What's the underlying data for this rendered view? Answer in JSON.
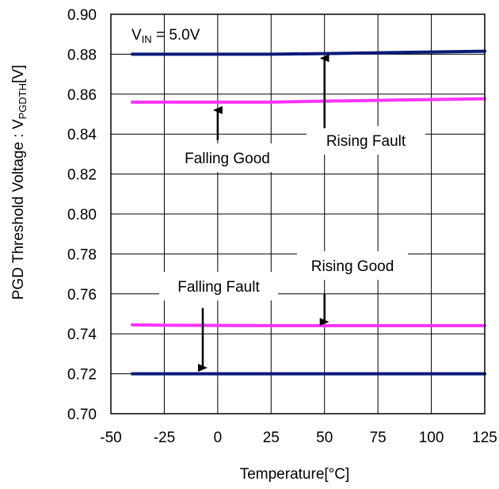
{
  "chart_data": {
    "type": "line",
    "title": "",
    "xlabel": "Temperature[°C]",
    "ylabel": {
      "main": "PGD Threshold Voltage : V",
      "sub": "PGDTH",
      "unit": "[V]"
    },
    "xlim": [
      -50,
      125
    ],
    "ylim": [
      0.7,
      0.9
    ],
    "xticks": [
      "-50",
      "-25",
      "0",
      "25",
      "50",
      "75",
      "100",
      "125"
    ],
    "yticks": [
      "0.70",
      "0.72",
      "0.74",
      "0.76",
      "0.78",
      "0.80",
      "0.82",
      "0.84",
      "0.86",
      "0.88",
      "0.90"
    ],
    "grid": true,
    "condition": {
      "prefix": "V",
      "sub": "IN",
      "rest": " = 5.0V"
    },
    "series": [
      {
        "name": "Rising Fault",
        "color": "#0a1a7a",
        "x": [
          -40,
          -25,
          0,
          25,
          50,
          75,
          100,
          125
        ],
        "y": [
          0.88,
          0.88,
          0.88,
          0.88,
          0.8803,
          0.8807,
          0.8811,
          0.8815
        ]
      },
      {
        "name": "Falling Good",
        "color": "#ff33ff",
        "x": [
          -40,
          -25,
          0,
          25,
          50,
          75,
          100,
          125
        ],
        "y": [
          0.856,
          0.856,
          0.856,
          0.856,
          0.8565,
          0.8569,
          0.8573,
          0.8577
        ]
      },
      {
        "name": "Rising Good",
        "color": "#ff33ff",
        "x": [
          -40,
          -25,
          0,
          25,
          50,
          75,
          100,
          125
        ],
        "y": [
          0.7445,
          0.7443,
          0.7442,
          0.7441,
          0.7441,
          0.7441,
          0.7441,
          0.7441
        ]
      },
      {
        "name": "Falling Fault",
        "color": "#0a1a7a",
        "x": [
          -40,
          -25,
          0,
          25,
          50,
          75,
          100,
          125
        ],
        "y": [
          0.72,
          0.72,
          0.72,
          0.72,
          0.72,
          0.72,
          0.72,
          0.72
        ]
      }
    ],
    "annotations": [
      {
        "text": "Falling Good",
        "arrow_x": 0,
        "arrow_from": 0.837,
        "arrow_to": 0.852
      },
      {
        "text": "Rising Fault",
        "arrow_x": 50,
        "arrow_from": 0.843,
        "arrow_to": 0.878
      },
      {
        "text": "Rising Good",
        "arrow_x": 50,
        "arrow_from": 0.76,
        "arrow_to": 0.746
      },
      {
        "text": "Falling Fault",
        "arrow_x": -7,
        "arrow_from": 0.753,
        "arrow_to": 0.723
      }
    ]
  }
}
